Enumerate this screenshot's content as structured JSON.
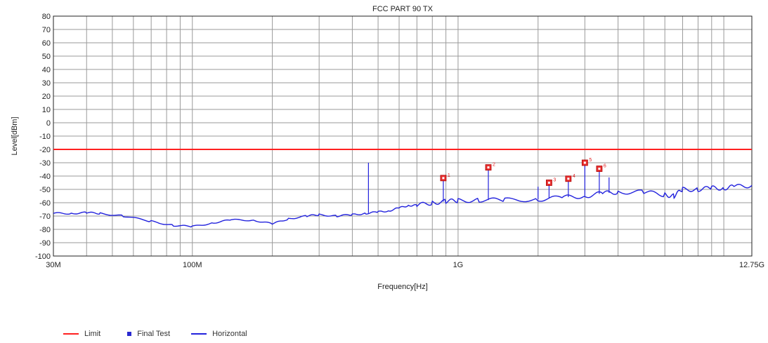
{
  "colors": {
    "limit": "#ff2020",
    "final_test": "#2a2ad0",
    "horizontal": "#2222dd",
    "marker_fill": "#e83030",
    "grid": "#9a9a9a",
    "axis": "#222222"
  },
  "chart_data": {
    "type": "line",
    "title": "FCC PART 90 TX",
    "xlabel": "Frequency[Hz]",
    "ylabel": "Level[dBm]",
    "x_scale": "log",
    "xlim": [
      30000000,
      12750000000
    ],
    "ylim": [
      -100,
      80
    ],
    "grid": true,
    "legend_position": "bottom-left",
    "x_tick_labels": [
      {
        "label": "30M",
        "value": 30000000
      },
      {
        "label": "100M",
        "value": 100000000
      },
      {
        "label": "1G",
        "value": 1000000000
      },
      {
        "label": "12.75G",
        "value": 12750000000
      }
    ],
    "y_ticks": [
      80,
      70,
      60,
      50,
      40,
      30,
      20,
      10,
      0,
      -10,
      -20,
      -30,
      -40,
      -50,
      -60,
      -70,
      -80,
      -90,
      -100
    ],
    "series": [
      {
        "name": "Limit",
        "type": "line",
        "points": [
          [
            30000000,
            -20
          ],
          [
            12750000000,
            -20
          ]
        ]
      },
      {
        "name": "Horizontal",
        "type": "line",
        "points": [
          [
            30000000,
            -68
          ],
          [
            35000000,
            -68
          ],
          [
            40000000,
            -67.5
          ],
          [
            45000000,
            -68
          ],
          [
            55000000,
            -70
          ],
          [
            70000000,
            -74
          ],
          [
            85000000,
            -77
          ],
          [
            100000000,
            -78
          ],
          [
            120000000,
            -75
          ],
          [
            140000000,
            -73
          ],
          [
            170000000,
            -73
          ],
          [
            200000000,
            -76
          ],
          [
            230000000,
            -72
          ],
          [
            270000000,
            -70
          ],
          [
            300000000,
            -69
          ],
          [
            350000000,
            -70
          ],
          [
            400000000,
            -69
          ],
          [
            450000000,
            -68
          ],
          [
            500000000,
            -67
          ],
          [
            550000000,
            -66
          ],
          [
            600000000,
            -64
          ],
          [
            650000000,
            -62
          ],
          [
            700000000,
            -62
          ],
          [
            800000000,
            -60
          ],
          [
            900000000,
            -59
          ],
          [
            1000000000,
            -58.5
          ],
          [
            1200000000,
            -58
          ],
          [
            1500000000,
            -58
          ],
          [
            2000000000,
            -57.5
          ],
          [
            2500000000,
            -56
          ],
          [
            3000000000,
            -55
          ],
          [
            3500000000,
            -53
          ],
          [
            4000000000,
            -52
          ],
          [
            5000000000,
            -52
          ],
          [
            6000000000,
            -54
          ],
          [
            6500000000,
            -55
          ],
          [
            7000000000,
            -50
          ],
          [
            8000000000,
            -50
          ],
          [
            9000000000,
            -49
          ],
          [
            10000000000,
            -49
          ],
          [
            11000000000,
            -48
          ],
          [
            12750000000,
            -47
          ]
        ],
        "spikes": [
          [
            460000000,
            -30
          ],
          [
            880000000,
            -42
          ],
          [
            1300000000,
            -32
          ],
          [
            2000000000,
            -48
          ],
          [
            2200000000,
            -44
          ],
          [
            2600000000,
            -41
          ],
          [
            3000000000,
            -30
          ],
          [
            3400000000,
            -34
          ],
          [
            3700000000,
            -41
          ]
        ]
      }
    ],
    "final_test": {
      "name": "Final Test",
      "points": [
        {
          "label": "1",
          "x": 880000000,
          "y": -41.5
        },
        {
          "label": "2",
          "x": 1300000000,
          "y": -33.5
        },
        {
          "label": "3",
          "x": 2200000000,
          "y": -45
        },
        {
          "label": "4",
          "x": 2600000000,
          "y": -42
        },
        {
          "label": "5",
          "x": 3000000000,
          "y": -30
        },
        {
          "label": "6",
          "x": 3400000000,
          "y": -34.5
        }
      ]
    },
    "legend": [
      {
        "name": "Limit",
        "style": "line"
      },
      {
        "name": "Final Test",
        "style": "square"
      },
      {
        "name": "Horizontal",
        "style": "line"
      }
    ]
  }
}
